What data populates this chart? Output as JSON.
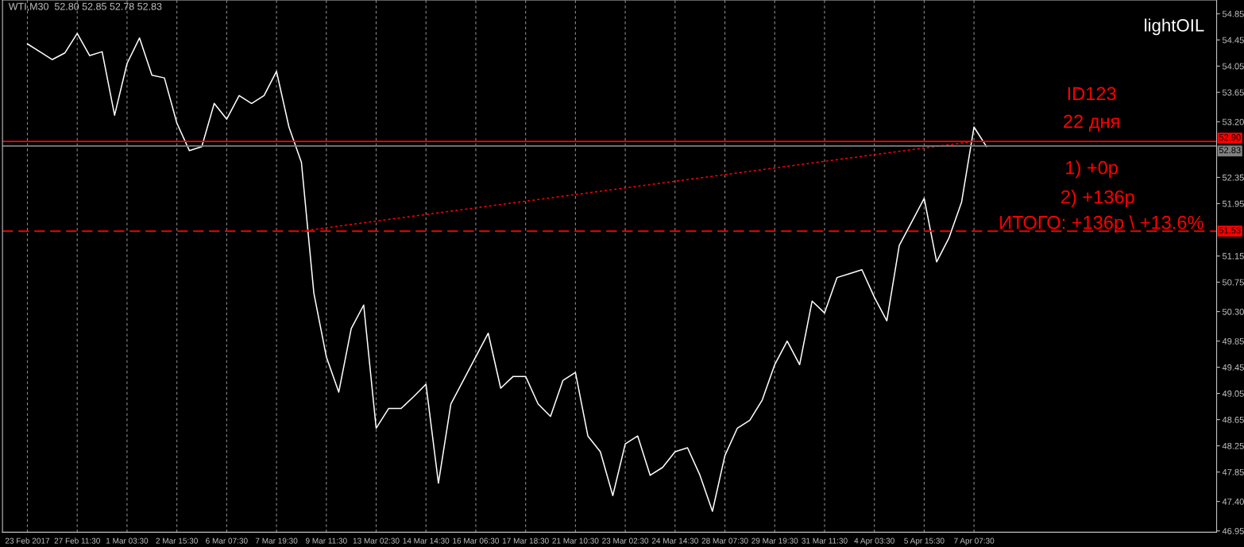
{
  "chart_data": {
    "type": "line",
    "title": "lightOIL",
    "annotations": [
      "WTI,M30  52.80 52.85 52.78 52.83",
      "ID123",
      "22 дня",
      "1) +0р",
      "2) +136р",
      "ИТОГО: +136р \\ +13.6%"
    ],
    "categories": [
      "23 Feb 2017",
      null,
      null,
      null,
      "27 Feb 11:30",
      null,
      null,
      null,
      "1 Mar 03:30",
      null,
      null,
      null,
      "2 Mar 15:30",
      null,
      null,
      null,
      "6 Mar 07:30",
      null,
      null,
      null,
      "7 Mar 19:30",
      null,
      null,
      null,
      "9 Mar 11:30",
      null,
      null,
      null,
      "13 Mar 02:30",
      null,
      null,
      null,
      "14 Mar 14:30",
      null,
      null,
      null,
      "16 Mar 06:30",
      null,
      null,
      null,
      "17 Mar 18:30",
      null,
      null,
      null,
      "21 Mar 10:30",
      null,
      null,
      null,
      "23 Mar 02:30",
      null,
      null,
      null,
      "24 Mar 14:30",
      null,
      null,
      null,
      "28 Mar 07:30",
      null,
      null,
      null,
      "29 Mar 19:30",
      null,
      null,
      null,
      "31 Mar 11:30",
      null,
      null,
      null,
      "4 Apr 03:30",
      null,
      null,
      null,
      "5 Apr 15:30",
      null,
      null,
      null,
      "7 Apr 07:30",
      null
    ],
    "series": [
      {
        "color": "#ffffff",
        "values": [
          54.39,
          54.27,
          54.15,
          54.25,
          54.55,
          54.21,
          54.27,
          53.3,
          54.09,
          54.48,
          53.91,
          53.87,
          53.18,
          52.76,
          52.82,
          53.48,
          53.24,
          53.6,
          53.48,
          53.6,
          53.97,
          53.12,
          52.58,
          50.58,
          49.61,
          49.07,
          50.04,
          50.4,
          48.52,
          48.82,
          48.82,
          49.0,
          49.19,
          47.68,
          48.89,
          49.25,
          49.61,
          49.97,
          49.13,
          49.31,
          49.31,
          48.89,
          48.7,
          49.25,
          49.37,
          48.4,
          48.16,
          47.49,
          48.28,
          48.4,
          47.8,
          47.92,
          48.16,
          48.22,
          47.8,
          47.25,
          48.1,
          48.52,
          48.64,
          48.95,
          49.49,
          49.85,
          49.49,
          50.46,
          50.28,
          50.82,
          50.88,
          50.94,
          50.52,
          50.16,
          51.31,
          51.67,
          52.03,
          51.06,
          51.43,
          51.97,
          53.12,
          52.82
        ]
      },
      {
        "color": "#ff0000",
        "line_style": "dotted",
        "values": [
          null,
          null,
          null,
          null,
          null,
          null,
          null,
          null,
          null,
          null,
          null,
          null,
          null,
          null,
          null,
          null,
          null,
          null,
          null,
          null,
          null,
          null,
          51.53,
          null,
          null,
          null,
          null,
          null,
          null,
          null,
          null,
          null,
          null,
          null,
          null,
          null,
          null,
          null,
          null,
          null,
          null,
          null,
          null,
          null,
          null,
          null,
          null,
          null,
          null,
          null,
          null,
          null,
          null,
          null,
          null,
          null,
          null,
          null,
          null,
          null,
          null,
          null,
          null,
          null,
          null,
          null,
          null,
          null,
          null,
          null,
          null,
          null,
          null,
          null,
          null,
          null,
          52.9,
          null
        ]
      }
    ],
    "ref_lines": [
      {
        "axis": "y",
        "value": 52.9,
        "label": "52.90",
        "color": "#ff0000",
        "line_style": "solid"
      },
      {
        "axis": "y",
        "value": 52.83,
        "label": "52.83",
        "color": "#808080",
        "line_style": "solid"
      },
      {
        "axis": "y",
        "value": 51.53,
        "label": "51.53",
        "color": "#ff0000",
        "line_style": "dashed"
      }
    ],
    "ylim": [
      46.93,
      55.06
    ],
    "yticks": [
      {
        "value": 54.85,
        "label": "54.85"
      },
      {
        "value": 54.45,
        "label": "54.45"
      },
      {
        "value": 54.05,
        "label": "54.05"
      },
      {
        "value": 53.65,
        "label": "53.65"
      },
      {
        "value": 53.2,
        "label": "53.20"
      },
      {
        "value": 52.35,
        "label": "52.35"
      },
      {
        "value": 51.95,
        "label": "51.95"
      },
      {
        "value": 51.15,
        "label": "51.15"
      },
      {
        "value": 50.75,
        "label": "50.75"
      },
      {
        "value": 50.3,
        "label": "50.30"
      },
      {
        "value": 49.85,
        "label": "49.85"
      },
      {
        "value": 49.45,
        "label": "49.45"
      },
      {
        "value": 49.05,
        "label": "49.05"
      },
      {
        "value": 48.65,
        "label": "48.65"
      },
      {
        "value": 48.25,
        "label": "48.25"
      },
      {
        "value": 47.85,
        "label": "47.85"
      },
      {
        "value": 47.4,
        "label": "47.40"
      },
      {
        "value": 46.95,
        "label": "46.95"
      }
    ],
    "grid": "x",
    "legend": false
  }
}
